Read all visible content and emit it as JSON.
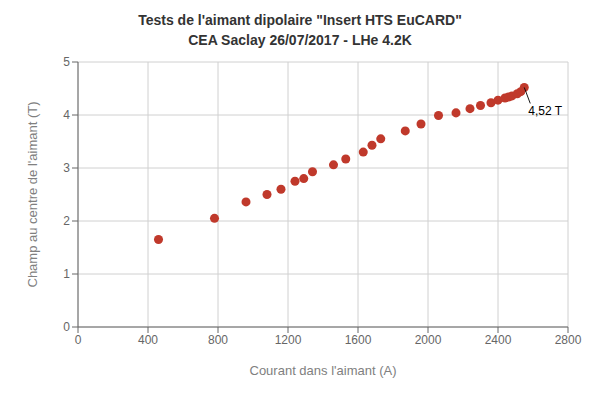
{
  "chart_data": {
    "type": "scatter",
    "title": "Tests de l'aimant dipolaire \"Insert HTS EuCARD\"",
    "subtitle": "CEA Saclay 26/07/2017 - LHe 4.2K",
    "x_label": "Courant dans l'aimant (A)",
    "y_label": "Champ au centre de l'aimant (T)",
    "color": "#c0392b",
    "x": [
      460,
      780,
      960,
      1080,
      1160,
      1240,
      1290,
      1340,
      1460,
      1530,
      1630,
      1680,
      1730,
      1870,
      1960,
      2060,
      2160,
      2240,
      2300,
      2360,
      2400,
      2440,
      2460,
      2480,
      2510,
      2530,
      2550
    ],
    "values": [
      1.65,
      2.05,
      2.36,
      2.5,
      2.6,
      2.75,
      2.8,
      2.93,
      3.06,
      3.17,
      3.3,
      3.43,
      3.55,
      3.7,
      3.83,
      3.99,
      4.04,
      4.12,
      4.18,
      4.23,
      4.28,
      4.32,
      4.34,
      4.36,
      4.4,
      4.44,
      4.52
    ],
    "xlim": [
      0,
      2800
    ],
    "ylim": [
      0,
      5
    ],
    "xticks": [
      0,
      400,
      800,
      1200,
      1600,
      2000,
      2400,
      2800
    ],
    "yticks": [
      0,
      1,
      2,
      3,
      4,
      5
    ],
    "grid": true,
    "annotations": [
      {
        "text": "4,52 T",
        "x": 2550,
        "y": 4.52
      }
    ]
  }
}
